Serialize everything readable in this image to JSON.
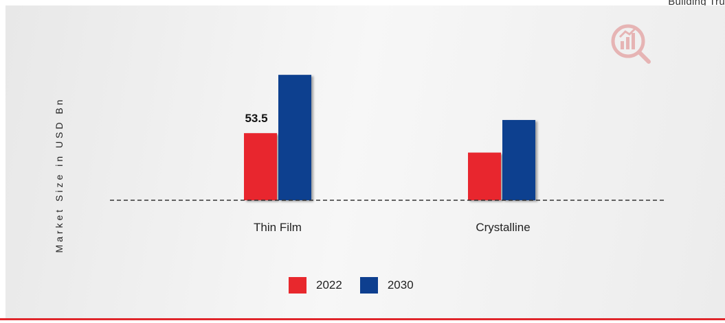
{
  "header": {
    "top_right_text": "Building Tru"
  },
  "colors": {
    "series_2022": "#e8282d",
    "series_2030": "#0e3f8f",
    "accent_rule": "#e0262b"
  },
  "watermark": {
    "icon": "chart-in-circle-logo-icon"
  },
  "chart_data": {
    "type": "bar",
    "categories": [
      "Thin Film",
      "Crystalline"
    ],
    "series": [
      {
        "name": "2022",
        "values": [
          53.5,
          38
        ]
      },
      {
        "name": "2030",
        "values": [
          100,
          64
        ]
      }
    ],
    "data_labels": [
      {
        "series": "2022",
        "category": "Thin Film",
        "text": "53.5"
      }
    ],
    "xlabel": "",
    "ylabel": "Market Size in USD Bn",
    "ylim": [
      0,
      105
    ],
    "grid": false,
    "baseline": "dashed",
    "legend_placement": "bottom-center"
  }
}
